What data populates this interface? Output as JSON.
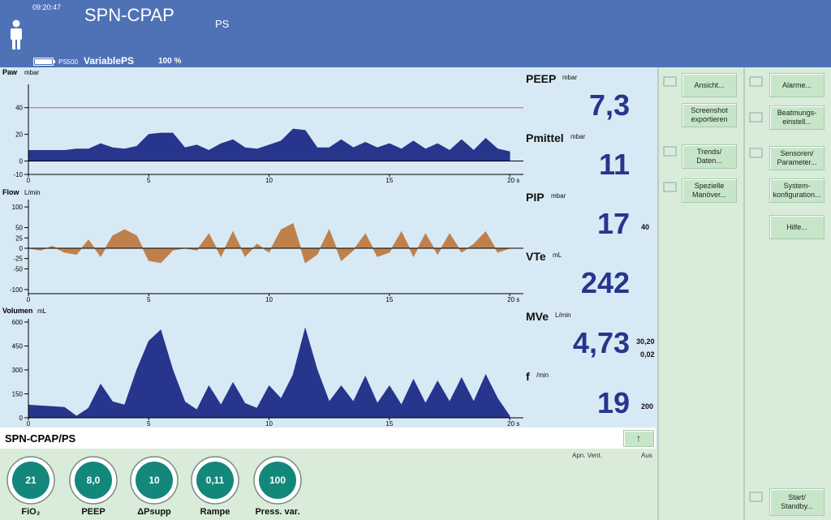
{
  "header": {
    "time": "09:20:47",
    "mode": "SPN-CPAP",
    "submode": "PS",
    "battery": "PS500",
    "variable": "VariablePS",
    "percent": "100 %"
  },
  "chart_data": [
    {
      "type": "area",
      "title": "Paw",
      "unit": "mbar",
      "color": "#27358c",
      "limit_line": 40,
      "limit_color": "#e0604c",
      "x": [
        0,
        0.5,
        1,
        1.5,
        2,
        2.5,
        3,
        3.5,
        4,
        4.5,
        5,
        5.5,
        6,
        6.5,
        7,
        7.5,
        8,
        8.5,
        9,
        9.5,
        10,
        10.5,
        11,
        11.5,
        12,
        12.5,
        13,
        13.5,
        14,
        14.5,
        15,
        15.5,
        16,
        16.5,
        17,
        17.5,
        18,
        18.5,
        19,
        19.5,
        20
      ],
      "values": [
        8,
        8,
        8,
        8,
        9,
        9,
        13,
        10,
        9,
        11,
        20,
        21,
        21,
        10,
        12,
        8,
        13,
        16,
        10,
        9,
        12,
        15,
        24,
        23,
        10,
        10,
        16,
        10,
        14,
        10,
        13,
        9,
        15,
        9,
        13,
        8,
        16,
        8,
        17,
        9,
        7
      ],
      "xlim": [
        0,
        20.4
      ],
      "xticks": [
        0,
        5,
        10,
        15,
        {
          "value": 20,
          "label": "20 s"
        }
      ],
      "ylim": [
        -10,
        55
      ],
      "yticks": [
        -10,
        0,
        20,
        40
      ]
    },
    {
      "type": "area",
      "title": "Flow",
      "unit": "L/min",
      "color": "#c0804c",
      "x": [
        0,
        0.5,
        1,
        1.5,
        2,
        2.5,
        3,
        3.5,
        4,
        4.5,
        5,
        5.5,
        6,
        6.5,
        7,
        7.5,
        8,
        8.5,
        9,
        9.5,
        10,
        10.5,
        11,
        11.5,
        12,
        12.5,
        13,
        13.5,
        14,
        14.5,
        15,
        15.5,
        16,
        16.5,
        17,
        17.5,
        18,
        18.5,
        19,
        19.5,
        20
      ],
      "values": [
        0,
        -5,
        5,
        -10,
        -15,
        20,
        -20,
        30,
        45,
        30,
        -30,
        -35,
        -5,
        0,
        -5,
        35,
        -20,
        40,
        -20,
        10,
        -10,
        45,
        60,
        -35,
        -15,
        45,
        -30,
        -5,
        35,
        -20,
        -10,
        40,
        -20,
        35,
        -15,
        35,
        -10,
        10,
        40,
        -10,
        0
      ],
      "xlim": [
        0,
        20.4
      ],
      "xticks": [
        0,
        5,
        10,
        15,
        {
          "value": 20,
          "label": "20 s"
        }
      ],
      "ylim": [
        -110,
        110
      ],
      "yticks": [
        -100,
        -50,
        -25,
        0,
        25,
        50,
        100
      ]
    },
    {
      "type": "area",
      "title": "Volumen",
      "unit": "mL",
      "color": "#27358c",
      "x": [
        0,
        0.5,
        1,
        1.5,
        2,
        2.5,
        3,
        3.5,
        4,
        4.5,
        5,
        5.5,
        6,
        6.5,
        7,
        7.5,
        8,
        8.5,
        9,
        9.5,
        10,
        10.5,
        11,
        11.5,
        12,
        12.5,
        13,
        13.5,
        14,
        14.5,
        15,
        15.5,
        16,
        16.5,
        17,
        17.5,
        18,
        18.5,
        19,
        19.5,
        20
      ],
      "values": [
        80,
        75,
        70,
        65,
        10,
        60,
        210,
        100,
        80,
        300,
        480,
        550,
        300,
        100,
        50,
        200,
        80,
        220,
        90,
        60,
        200,
        120,
        270,
        560,
        300,
        100,
        200,
        100,
        260,
        90,
        200,
        80,
        240,
        90,
        230,
        100,
        250,
        100,
        270,
        120,
        10
      ],
      "xlim": [
        0,
        20.4
      ],
      "xticks": [
        0,
        5,
        10,
        15,
        {
          "value": 20,
          "label": "20 s"
        }
      ],
      "ylim": [
        0,
        600
      ],
      "yticks": [
        0,
        150,
        300,
        450,
        600
      ]
    }
  ],
  "readouts": [
    {
      "label": "PEEP",
      "unit": "mbar",
      "value": "7,3"
    },
    {
      "label": "Pmittel",
      "unit": "mbar",
      "value": "11"
    },
    {
      "label": "PIP",
      "unit": "mbar",
      "value": "17",
      "limit": "40"
    },
    {
      "label": "VTe",
      "unit": "mL",
      "value": "242"
    },
    {
      "label": "MVe",
      "unit": "L/min",
      "value": "4,73",
      "limit": "30,20",
      "limit_low": "0,02"
    },
    {
      "label": "f",
      "unit": "/min",
      "value": "19",
      "limit": "200"
    }
  ],
  "menu_left": [
    "Ansicht...",
    "Screenshot exportieren",
    "Trends/ Daten...",
    "Spezielle Manöver..."
  ],
  "menu_right": [
    "Alarme...",
    "Beatmungs-einstell...",
    "Sensoren/ Parameter...",
    "System-konfiguration...",
    "Hilfe...",
    "Start/ Standby..."
  ],
  "mode_bar": {
    "title": "SPN-CPAP/PS",
    "button": "↑",
    "apnea_label": "Apn. Vent.",
    "apnea_value": "Aus"
  },
  "settings": [
    {
      "value": "21",
      "label": "FiO₂"
    },
    {
      "value": "8,0",
      "label": "PEEP"
    },
    {
      "value": "10",
      "label": "ΔPsupp"
    },
    {
      "value": "0,11",
      "label": "Rampe"
    },
    {
      "value": "100",
      "label": "Press. var."
    }
  ]
}
